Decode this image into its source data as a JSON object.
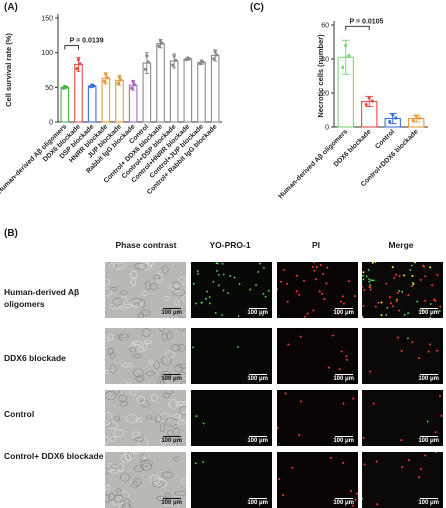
{
  "panel_labels": {
    "a": "(A)",
    "b": "(B)",
    "c": "(C)"
  },
  "colors": {
    "axis": "#333333",
    "green": "#4caf50",
    "red": "#e05048",
    "blue": "#3f6fd8",
    "orange": "#e89a3c",
    "purple": "#a66cc8",
    "gray": "#8a8a8a",
    "light_green": "#7bd67b"
  },
  "chart_data": [
    {
      "id": "A",
      "type": "bar",
      "title": "",
      "ylabel": "Cell survival rate (%)",
      "ylim": [
        0,
        150
      ],
      "yticks": [
        0,
        50,
        100,
        150
      ],
      "grid": false,
      "categories": [
        "Human-derived Aβ oligomers",
        "DDX6 blockade",
        "DSP blockade",
        "HNRR blockade",
        "JUP blockade",
        "Rabbit IgG blockade",
        "Control",
        "Control+ DDX6 blockade",
        "Control+DSP blockade",
        "Control+HNRR blockade",
        "Control+JUP blockade",
        "Control+ Rabbit IgG blockade"
      ],
      "values": [
        50,
        83,
        52,
        63,
        60,
        53,
        85,
        113,
        88,
        91,
        86,
        96
      ],
      "errors": [
        2,
        10,
        2,
        8,
        7,
        7,
        15,
        6,
        10,
        2,
        3,
        8
      ],
      "bar_colors": [
        "green",
        "red",
        "blue",
        "orange",
        "orange",
        "purple",
        "gray",
        "gray",
        "gray",
        "gray",
        "gray",
        "gray"
      ],
      "annotation": {
        "text": "P = 0.0139",
        "from": 0,
        "to": 1
      }
    },
    {
      "id": "C",
      "type": "bar",
      "title": "",
      "ylabel": "Necrotic cells (number)",
      "ylim": [
        0,
        60
      ],
      "yticks": [
        0,
        20,
        40,
        60
      ],
      "grid": false,
      "categories": [
        "Human-derived Aβ oligomers",
        "DDX6 blockade",
        "Control",
        "Control+DDX6 blockade"
      ],
      "values": [
        41,
        15,
        5,
        5
      ],
      "errors": [
        10,
        3,
        3,
        2
      ],
      "bar_colors": [
        "light_green",
        "red",
        "blue",
        "orange"
      ],
      "annotation": {
        "text": "P = 0.0105",
        "from": 0,
        "to": 1
      }
    }
  ],
  "panel_b": {
    "columns": [
      "Phase contrast",
      "YO-PRO-1",
      "PI",
      "Merge"
    ],
    "rows": [
      {
        "label": "Human-derived Aβ oligomers"
      },
      {
        "label": "DDX6 blockade"
      },
      {
        "label": "Control"
      },
      {
        "label": "Control+ DDX6 blockade"
      }
    ],
    "scale_label": "100 μm"
  }
}
